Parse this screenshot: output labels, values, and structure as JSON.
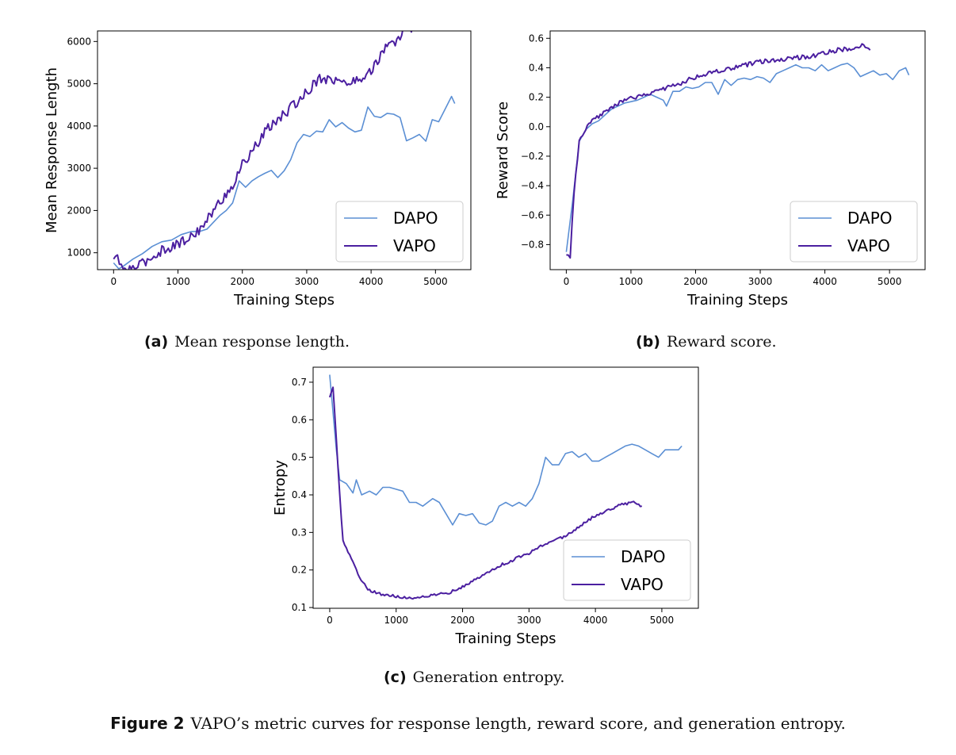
{
  "figure": {
    "label": "Figure 2",
    "text": "VAPO’s metric curves for response length, reward score, and generation entropy."
  },
  "colors": {
    "DAPO": "#5b8fd4",
    "VAPO": "#4b1fa0"
  },
  "chart_data": [
    {
      "type": "line",
      "caption_tag": "(a)",
      "caption_text": "Mean response length.",
      "xlabel": "Training Steps",
      "ylabel": "Mean Response Length",
      "xlim": [
        -250,
        5550
      ],
      "ylim": [
        600,
        6250
      ],
      "xticks": [
        0,
        1000,
        2000,
        3000,
        4000,
        5000
      ],
      "yticks": [
        1000,
        2000,
        3000,
        4000,
        5000,
        6000
      ],
      "legend": "lower-right",
      "series": [
        {
          "name": "DAPO",
          "color": "#5b8fd4",
          "noise": 0,
          "points": [
            [
              0,
              760
            ],
            [
              80,
              620
            ],
            [
              150,
              680
            ],
            [
              300,
              850
            ],
            [
              450,
              980
            ],
            [
              600,
              1150
            ],
            [
              750,
              1260
            ],
            [
              900,
              1300
            ],
            [
              1050,
              1430
            ],
            [
              1200,
              1500
            ],
            [
              1350,
              1510
            ],
            [
              1450,
              1560
            ],
            [
              1550,
              1720
            ],
            [
              1650,
              1880
            ],
            [
              1750,
              2000
            ],
            [
              1850,
              2180
            ],
            [
              1950,
              2700
            ],
            [
              2050,
              2550
            ],
            [
              2150,
              2700
            ],
            [
              2250,
              2800
            ],
            [
              2350,
              2880
            ],
            [
              2450,
              2950
            ],
            [
              2550,
              2780
            ],
            [
              2650,
              2940
            ],
            [
              2750,
              3200
            ],
            [
              2850,
              3600
            ],
            [
              2950,
              3800
            ],
            [
              3050,
              3750
            ],
            [
              3150,
              3880
            ],
            [
              3250,
              3860
            ],
            [
              3350,
              4150
            ],
            [
              3450,
              3980
            ],
            [
              3550,
              4080
            ],
            [
              3650,
              3950
            ],
            [
              3750,
              3860
            ],
            [
              3850,
              3900
            ],
            [
              3950,
              4450
            ],
            [
              4050,
              4230
            ],
            [
              4150,
              4200
            ],
            [
              4250,
              4300
            ],
            [
              4350,
              4280
            ],
            [
              4450,
              4200
            ],
            [
              4550,
              3650
            ],
            [
              4650,
              3720
            ],
            [
              4750,
              3800
            ],
            [
              4850,
              3640
            ],
            [
              4950,
              4150
            ],
            [
              5050,
              4100
            ],
            [
              5150,
              4400
            ],
            [
              5250,
              4700
            ],
            [
              5300,
              4530
            ]
          ]
        },
        {
          "name": "VAPO",
          "color": "#4b1fa0",
          "noise": 120,
          "points": [
            [
              0,
              850
            ],
            [
              60,
              920
            ],
            [
              120,
              620
            ],
            [
              250,
              620
            ],
            [
              400,
              700
            ],
            [
              600,
              900
            ],
            [
              800,
              1100
            ],
            [
              1000,
              1200
            ],
            [
              1200,
              1380
            ],
            [
              1400,
              1650
            ],
            [
              1600,
              2100
            ],
            [
              1800,
              2500
            ],
            [
              1900,
              2700
            ],
            [
              2000,
              3100
            ],
            [
              2200,
              3500
            ],
            [
              2400,
              3950
            ],
            [
              2600,
              4200
            ],
            [
              2800,
              4500
            ],
            [
              3000,
              4800
            ],
            [
              3200,
              5150
            ],
            [
              3400,
              5100
            ],
            [
              3600,
              5000
            ],
            [
              3800,
              5100
            ],
            [
              4000,
              5300
            ],
            [
              4200,
              5800
            ],
            [
              4400,
              6000
            ],
            [
              4550,
              6350
            ],
            [
              4700,
              6300
            ]
          ]
        }
      ]
    },
    {
      "type": "line",
      "caption_tag": "(b)",
      "caption_text": "Reward score.",
      "xlabel": "Training Steps",
      "ylabel": "Reward Score",
      "xlim": [
        -250,
        5550
      ],
      "ylim": [
        -0.97,
        0.65
      ],
      "xticks": [
        0,
        1000,
        2000,
        3000,
        4000,
        5000
      ],
      "yticks": [
        -0.8,
        -0.6,
        -0.4,
        -0.2,
        0.0,
        0.2,
        0.4,
        0.6
      ],
      "legend": "lower-right",
      "series": [
        {
          "name": "DAPO",
          "color": "#5b8fd4",
          "noise": 0,
          "points": [
            [
              0,
              -0.85
            ],
            [
              100,
              -0.5
            ],
            [
              200,
              -0.1
            ],
            [
              300,
              -0.02
            ],
            [
              400,
              0.02
            ],
            [
              500,
              0.04
            ],
            [
              600,
              0.08
            ],
            [
              700,
              0.12
            ],
            [
              800,
              0.14
            ],
            [
              900,
              0.16
            ],
            [
              1000,
              0.17
            ],
            [
              1100,
              0.18
            ],
            [
              1200,
              0.2
            ],
            [
              1300,
              0.22
            ],
            [
              1400,
              0.2
            ],
            [
              1500,
              0.18
            ],
            [
              1550,
              0.14
            ],
            [
              1650,
              0.24
            ],
            [
              1750,
              0.24
            ],
            [
              1850,
              0.27
            ],
            [
              1950,
              0.26
            ],
            [
              2050,
              0.27
            ],
            [
              2150,
              0.3
            ],
            [
              2250,
              0.3
            ],
            [
              2350,
              0.22
            ],
            [
              2450,
              0.32
            ],
            [
              2550,
              0.28
            ],
            [
              2650,
              0.32
            ],
            [
              2750,
              0.33
            ],
            [
              2850,
              0.32
            ],
            [
              2950,
              0.34
            ],
            [
              3050,
              0.33
            ],
            [
              3150,
              0.3
            ],
            [
              3250,
              0.36
            ],
            [
              3350,
              0.38
            ],
            [
              3450,
              0.4
            ],
            [
              3550,
              0.42
            ],
            [
              3650,
              0.4
            ],
            [
              3750,
              0.4
            ],
            [
              3850,
              0.38
            ],
            [
              3950,
              0.42
            ],
            [
              4050,
              0.38
            ],
            [
              4150,
              0.4
            ],
            [
              4250,
              0.42
            ],
            [
              4350,
              0.43
            ],
            [
              4450,
              0.4
            ],
            [
              4550,
              0.34
            ],
            [
              4650,
              0.36
            ],
            [
              4750,
              0.38
            ],
            [
              4850,
              0.35
            ],
            [
              4950,
              0.36
            ],
            [
              5050,
              0.32
            ],
            [
              5150,
              0.38
            ],
            [
              5250,
              0.4
            ],
            [
              5300,
              0.35
            ]
          ]
        },
        {
          "name": "VAPO",
          "color": "#4b1fa0",
          "noise": 0.015,
          "points": [
            [
              0,
              -0.87
            ],
            [
              60,
              -0.88
            ],
            [
              120,
              -0.45
            ],
            [
              200,
              -0.1
            ],
            [
              300,
              -0.02
            ],
            [
              400,
              0.04
            ],
            [
              600,
              0.1
            ],
            [
              800,
              0.16
            ],
            [
              1000,
              0.19
            ],
            [
              1200,
              0.22
            ],
            [
              1400,
              0.24
            ],
            [
              1600,
              0.27
            ],
            [
              1800,
              0.3
            ],
            [
              2000,
              0.34
            ],
            [
              2200,
              0.36
            ],
            [
              2400,
              0.38
            ],
            [
              2600,
              0.4
            ],
            [
              2800,
              0.42
            ],
            [
              3000,
              0.44
            ],
            [
              3200,
              0.45
            ],
            [
              3400,
              0.46
            ],
            [
              3600,
              0.47
            ],
            [
              3800,
              0.48
            ],
            [
              4000,
              0.5
            ],
            [
              4200,
              0.52
            ],
            [
              4400,
              0.53
            ],
            [
              4600,
              0.55
            ],
            [
              4700,
              0.52
            ]
          ]
        }
      ]
    },
    {
      "type": "line",
      "caption_tag": "(c)",
      "caption_text": "Generation entropy.",
      "xlabel": "Training Steps",
      "ylabel": "Entropy",
      "xlim": [
        -250,
        5550
      ],
      "ylim": [
        0.098,
        0.74
      ],
      "xticks": [
        0,
        1000,
        2000,
        3000,
        4000,
        5000
      ],
      "yticks": [
        0.1,
        0.2,
        0.3,
        0.4,
        0.5,
        0.6,
        0.7
      ],
      "legend": "lower-right",
      "series": [
        {
          "name": "DAPO",
          "color": "#5b8fd4",
          "noise": 0,
          "points": [
            [
              0,
              0.72
            ],
            [
              100,
              0.52
            ],
            [
              150,
              0.44
            ],
            [
              250,
              0.43
            ],
            [
              350,
              0.405
            ],
            [
              400,
              0.44
            ],
            [
              480,
              0.4
            ],
            [
              600,
              0.41
            ],
            [
              700,
              0.4
            ],
            [
              800,
              0.42
            ],
            [
              900,
              0.42
            ],
            [
              1000,
              0.415
            ],
            [
              1100,
              0.41
            ],
            [
              1200,
              0.38
            ],
            [
              1300,
              0.38
            ],
            [
              1400,
              0.37
            ],
            [
              1550,
              0.39
            ],
            [
              1650,
              0.38
            ],
            [
              1750,
              0.35
            ],
            [
              1850,
              0.32
            ],
            [
              1950,
              0.35
            ],
            [
              2050,
              0.345
            ],
            [
              2150,
              0.35
            ],
            [
              2250,
              0.325
            ],
            [
              2350,
              0.32
            ],
            [
              2450,
              0.33
            ],
            [
              2550,
              0.37
            ],
            [
              2650,
              0.38
            ],
            [
              2750,
              0.37
            ],
            [
              2850,
              0.38
            ],
            [
              2950,
              0.37
            ],
            [
              3050,
              0.39
            ],
            [
              3150,
              0.43
            ],
            [
              3250,
              0.5
            ],
            [
              3350,
              0.48
            ],
            [
              3450,
              0.48
            ],
            [
              3550,
              0.51
            ],
            [
              3650,
              0.515
            ],
            [
              3750,
              0.5
            ],
            [
              3850,
              0.51
            ],
            [
              3950,
              0.49
            ],
            [
              4050,
              0.49
            ],
            [
              4150,
              0.5
            ],
            [
              4250,
              0.51
            ],
            [
              4350,
              0.52
            ],
            [
              4450,
              0.53
            ],
            [
              4550,
              0.535
            ],
            [
              4650,
              0.53
            ],
            [
              4750,
              0.52
            ],
            [
              4850,
              0.51
            ],
            [
              4950,
              0.5
            ],
            [
              5050,
              0.52
            ],
            [
              5150,
              0.52
            ],
            [
              5250,
              0.52
            ],
            [
              5300,
              0.53
            ]
          ]
        },
        {
          "name": "VAPO",
          "color": "#4b1fa0",
          "noise": 0.004,
          "points": [
            [
              0,
              0.66
            ],
            [
              50,
              0.685
            ],
            [
              100,
              0.55
            ],
            [
              150,
              0.4
            ],
            [
              200,
              0.28
            ],
            [
              300,
              0.24
            ],
            [
              400,
              0.2
            ],
            [
              500,
              0.165
            ],
            [
              600,
              0.145
            ],
            [
              800,
              0.135
            ],
            [
              1000,
              0.13
            ],
            [
              1200,
              0.125
            ],
            [
              1400,
              0.13
            ],
            [
              1600,
              0.135
            ],
            [
              1800,
              0.14
            ],
            [
              2000,
              0.155
            ],
            [
              2200,
              0.175
            ],
            [
              2400,
              0.195
            ],
            [
              2600,
              0.215
            ],
            [
              2800,
              0.23
            ],
            [
              3000,
              0.245
            ],
            [
              3200,
              0.265
            ],
            [
              3400,
              0.28
            ],
            [
              3600,
              0.295
            ],
            [
              3800,
              0.32
            ],
            [
              4000,
              0.345
            ],
            [
              4200,
              0.36
            ],
            [
              4400,
              0.375
            ],
            [
              4550,
              0.38
            ],
            [
              4650,
              0.375
            ],
            [
              4700,
              0.37
            ]
          ]
        }
      ]
    }
  ]
}
